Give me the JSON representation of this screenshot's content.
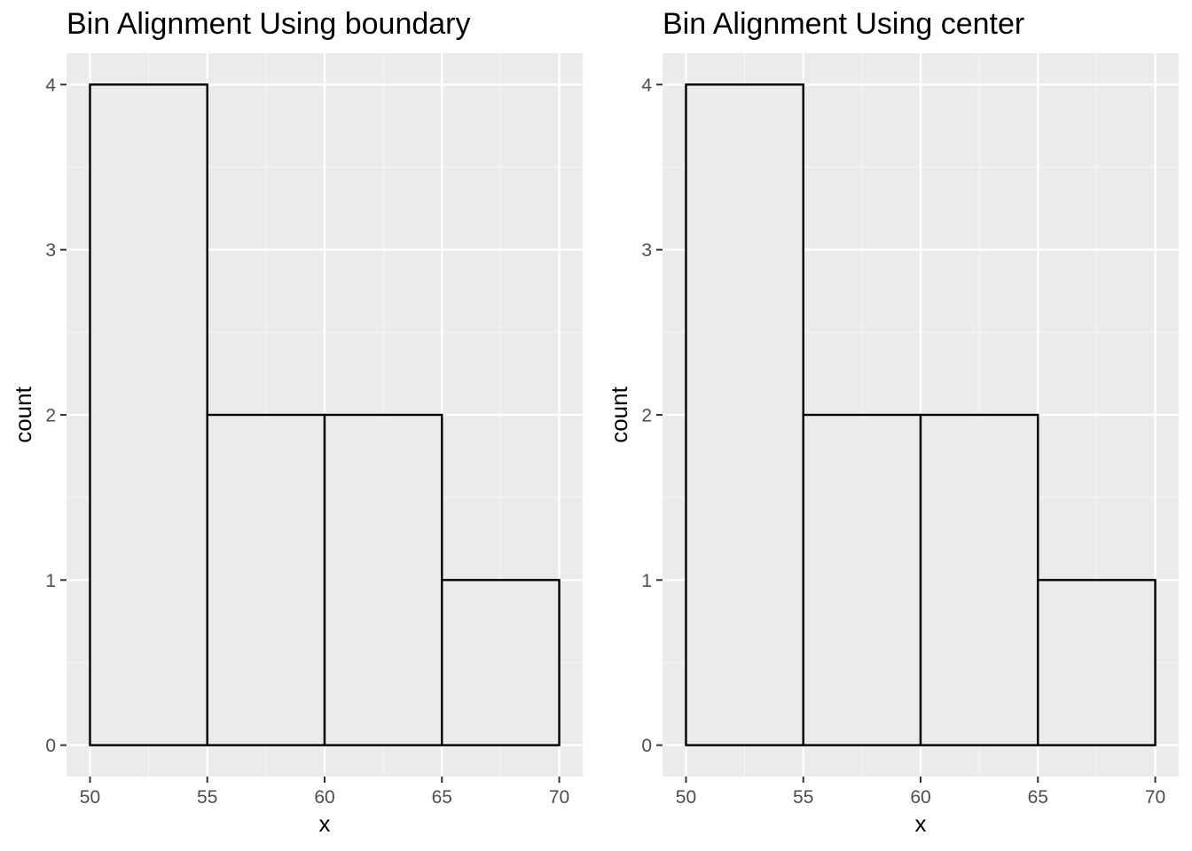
{
  "chart_data": [
    {
      "type": "bar",
      "title": "Bin Alignment Using boundary",
      "xlabel": "x",
      "ylabel": "count",
      "xlim": [
        49,
        71
      ],
      "ylim": [
        -0.19,
        4.19
      ],
      "x_ticks": [
        50,
        55,
        60,
        65,
        70
      ],
      "y_ticks": [
        0,
        1,
        2,
        3,
        4
      ],
      "bins": [
        {
          "x_start": 50,
          "x_end": 55,
          "count": 4
        },
        {
          "x_start": 55,
          "x_end": 60,
          "count": 2
        },
        {
          "x_start": 60,
          "x_end": 65,
          "count": 2
        },
        {
          "x_start": 65,
          "x_end": 70,
          "count": 1
        }
      ],
      "grid": true,
      "colors": {
        "panel": "#ebebeb",
        "grid_major": "#ffffff",
        "grid_minor": "#f5f5f5",
        "bar_fill": "#ebebeb",
        "bar_outline": "#000000"
      }
    },
    {
      "type": "bar",
      "title": "Bin Alignment Using center",
      "xlabel": "x",
      "ylabel": "count",
      "xlim": [
        49,
        71
      ],
      "ylim": [
        -0.19,
        4.19
      ],
      "x_ticks": [
        50,
        55,
        60,
        65,
        70
      ],
      "y_ticks": [
        0,
        1,
        2,
        3,
        4
      ],
      "bins": [
        {
          "x_start": 50,
          "x_end": 55,
          "count": 4
        },
        {
          "x_start": 55,
          "x_end": 60,
          "count": 2
        },
        {
          "x_start": 60,
          "x_end": 65,
          "count": 2
        },
        {
          "x_start": 65,
          "x_end": 70,
          "count": 1
        }
      ],
      "grid": true,
      "colors": {
        "panel": "#ebebeb",
        "grid_major": "#ffffff",
        "grid_minor": "#f5f5f5",
        "bar_fill": "#ebebeb",
        "bar_outline": "#000000"
      }
    }
  ]
}
